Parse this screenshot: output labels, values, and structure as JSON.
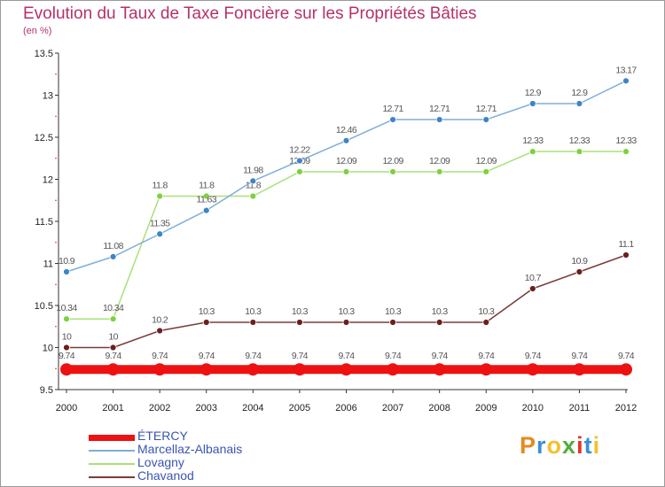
{
  "header": {
    "title": "Evolution du Taux de Taxe Foncière sur les Propriétés Bâties",
    "unit": "(en %)"
  },
  "logo": {
    "text": "Proxiti",
    "colors": [
      "#e58a1f",
      "#3a8fd8",
      "#f2c12e",
      "#4fae3a",
      "#e2342a",
      "#3a8fd8",
      "#f2c12e"
    ]
  },
  "chart_data": {
    "type": "line",
    "x": [
      2000,
      2001,
      2002,
      2003,
      2004,
      2005,
      2006,
      2007,
      2008,
      2009,
      2010,
      2011,
      2012
    ],
    "ylim": [
      9.5,
      13.5
    ],
    "yticks": [
      9.5,
      10,
      10.5,
      11,
      11.5,
      12,
      12.5,
      13,
      13.5
    ],
    "ytick_labels": [
      "9.5",
      "10",
      "10.5",
      "11",
      "11.5",
      "12",
      "12.5",
      "13",
      "13.5"
    ],
    "grid": false,
    "legend_position": "bottom-left",
    "series": [
      {
        "name": "ÉTERCY",
        "color": "#ee1111",
        "values": [
          9.74,
          9.74,
          9.74,
          9.74,
          9.74,
          9.74,
          9.74,
          9.74,
          9.74,
          9.74,
          9.74,
          9.74,
          9.74
        ],
        "labels": [
          "9.74",
          "9.74",
          "9.74",
          "9.74",
          "9.74",
          "9.74",
          "9.74",
          "9.74",
          "9.74",
          "9.74",
          "9.74",
          "9.74",
          "9.74"
        ]
      },
      {
        "name": "Marcellaz-Albanais",
        "color": "#7eaed9",
        "marker": "#3d85c6",
        "values": [
          10.9,
          11.08,
          11.35,
          11.63,
          11.98,
          12.22,
          12.46,
          12.71,
          12.71,
          12.71,
          12.9,
          12.9,
          13.17
        ],
        "labels": [
          "10.9",
          "11.08",
          "11.35",
          "11.63",
          "11.98",
          "12.22",
          "12.46",
          "12.71",
          "12.71",
          "12.71",
          "12.9",
          "12.9",
          "13.17"
        ]
      },
      {
        "name": "Lovagny",
        "color": "#a9e07a",
        "marker": "#7ed13f",
        "values": [
          10.34,
          10.34,
          11.8,
          11.8,
          11.8,
          12.09,
          12.09,
          12.09,
          12.09,
          12.09,
          12.33,
          12.33,
          12.33
        ],
        "labels": [
          "10.34",
          "10.34",
          "11.8",
          "11.8",
          "11.8",
          "12.09",
          "12.09",
          "12.09",
          "12.09",
          "12.09",
          "12.33",
          "12.33",
          "12.33"
        ]
      },
      {
        "name": "Chavanod",
        "color": "#7a3a3a",
        "marker": "#6b1f1f",
        "values": [
          10,
          10,
          10.2,
          10.3,
          10.3,
          10.3,
          10.3,
          10.3,
          10.3,
          10.3,
          10.7,
          10.9,
          11.1
        ],
        "labels": [
          "10",
          "10",
          "10.2",
          "10.3",
          "10.3",
          "10.3",
          "10.3",
          "10.3",
          "10.3",
          "10.3",
          "10.7",
          "10.9",
          "11.1"
        ]
      }
    ]
  }
}
